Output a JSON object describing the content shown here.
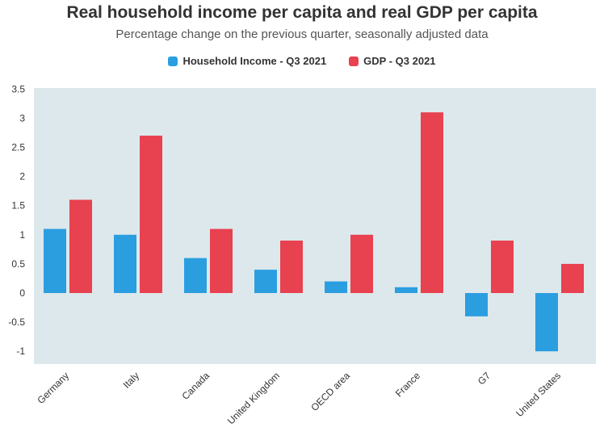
{
  "title": "Real household income per capita and real GDP per capita",
  "subtitle": "Percentage change on the previous quarter, seasonally adjusted data",
  "colors": {
    "plot_bg": "#dde8ec",
    "household": "#2b9ee0",
    "gdp": "#e8414f"
  },
  "chart_data": {
    "type": "bar",
    "title": "Real household income per capita and real GDP per capita",
    "subtitle": "Percentage change on the previous quarter, seasonally adjusted data",
    "xlabel": "",
    "ylabel": "",
    "ylim": [
      -1.2,
      3.5
    ],
    "yticks": [
      "3.5",
      "3",
      "2.5",
      "2",
      "1.5",
      "1",
      "0.5",
      "0",
      "-0.5",
      "-1"
    ],
    "grid": false,
    "legend_position": "top-center",
    "categories": [
      "Germany",
      "Italy",
      "Canada",
      "United Kingdom",
      "OECD area",
      "France",
      "G7",
      "United States"
    ],
    "series": [
      {
        "name": "Household Income - Q3 2021",
        "values": [
          1.1,
          1.0,
          0.6,
          0.4,
          0.2,
          0.1,
          -0.4,
          -1.0
        ]
      },
      {
        "name": "GDP - Q3 2021",
        "values": [
          1.6,
          2.7,
          1.1,
          0.9,
          1.0,
          3.1,
          0.9,
          0.5
        ]
      }
    ]
  }
}
